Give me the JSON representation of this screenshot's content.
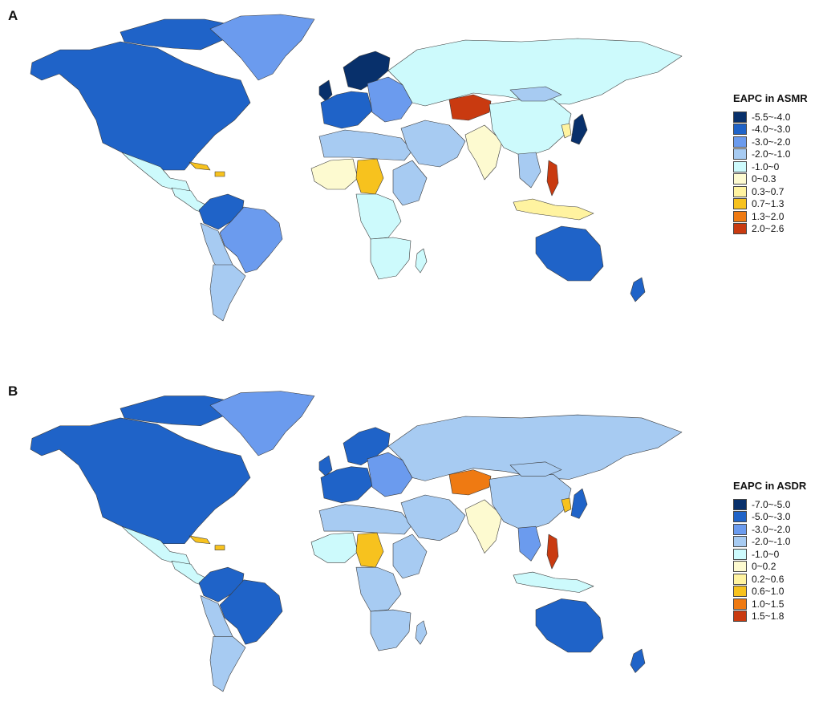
{
  "panels": [
    {
      "letter": "A",
      "legend_title": "EAPC in ASMR",
      "legend": [
        {
          "label": "-5.5~-4.0",
          "color": "#08306b"
        },
        {
          "label": "-4.0~-3.0",
          "color": "#1f63c8"
        },
        {
          "label": "-3.0~-2.0",
          "color": "#6b9bee"
        },
        {
          "label": "-2.0~-1.0",
          "color": "#a7cbf2"
        },
        {
          "label": "-1.0~0",
          "color": "#cdfafc"
        },
        {
          "label": "0~0.3",
          "color": "#fdfad0"
        },
        {
          "label": "0.3~0.7",
          "color": "#fff3a0"
        },
        {
          "label": "0.7~1.3",
          "color": "#f7c21e"
        },
        {
          "label": "1.3~2.0",
          "color": "#ef7a12"
        },
        {
          "label": "2.0~2.6",
          "color": "#c93a10"
        }
      ],
      "regions": {
        "north_america": 1,
        "greenland": 2,
        "arctic_islands": 1,
        "mexico": 4,
        "central_america": 4,
        "caribbean": 7,
        "colombia_venezuela": 1,
        "brazil": 2,
        "andes": 3,
        "southern_cone": 3,
        "uk": 0,
        "nordic": 0,
        "western_europe": 1,
        "eastern_europe": 2,
        "russia": 4,
        "north_africa": 3,
        "west_africa": 5,
        "central_africa": 4,
        "niger_chad": 7,
        "east_africa": 3,
        "southern_africa": 4,
        "madagascar": 4,
        "middle_east": 3,
        "central_asia": 9,
        "south_asia": 5,
        "china": 4,
        "mongolia": 3,
        "korea": 6,
        "japan": 0,
        "southeast_asia": 3,
        "indonesia": 6,
        "philippines": 9,
        "australia": 1,
        "new_zealand": 1
      }
    },
    {
      "letter": "B",
      "legend_title": "EAPC in ASDR",
      "legend": [
        {
          "label": "-7.0~-5.0",
          "color": "#08306b"
        },
        {
          "label": "-5.0~-3.0",
          "color": "#1f63c8"
        },
        {
          "label": "-3.0~-2.0",
          "color": "#6b9bee"
        },
        {
          "label": "-2.0~-1.0",
          "color": "#a7cbf2"
        },
        {
          "label": "-1.0~0",
          "color": "#cdfafc"
        },
        {
          "label": "0~0.2",
          "color": "#fdfad0"
        },
        {
          "label": "0.2~0.6",
          "color": "#fff3a0"
        },
        {
          "label": "0.6~1.0",
          "color": "#f7c21e"
        },
        {
          "label": "1.0~1.5",
          "color": "#ef7a12"
        },
        {
          "label": "1.5~1.8",
          "color": "#c93a10"
        }
      ],
      "regions": {
        "north_america": 1,
        "greenland": 2,
        "arctic_islands": 1,
        "mexico": 4,
        "central_america": 4,
        "caribbean": 7,
        "colombia_venezuela": 1,
        "brazil": 1,
        "andes": 3,
        "southern_cone": 3,
        "uk": 1,
        "nordic": 1,
        "western_europe": 1,
        "eastern_europe": 2,
        "russia": 3,
        "north_africa": 3,
        "west_africa": 4,
        "central_africa": 3,
        "niger_chad": 7,
        "east_africa": 3,
        "southern_africa": 3,
        "madagascar": 3,
        "middle_east": 3,
        "central_asia": 8,
        "south_asia": 5,
        "china": 3,
        "mongolia": 3,
        "korea": 7,
        "japan": 1,
        "southeast_asia": 2,
        "indonesia": 4,
        "philippines": 9,
        "australia": 1,
        "new_zealand": 1
      }
    }
  ]
}
